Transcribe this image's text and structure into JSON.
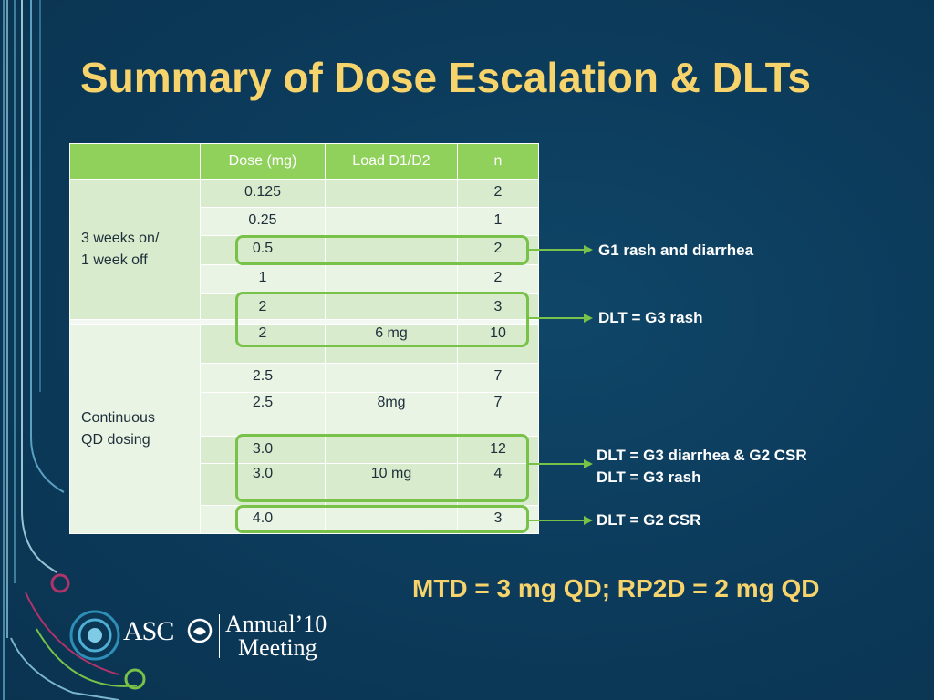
{
  "slide": {
    "title": "Summary of Dose Escalation & DLTs",
    "mtd_line": "MTD = 3 mg QD; RP2D = 2 mg QD",
    "logo": {
      "name": "ASCO",
      "sub1": "Annual’10",
      "sub2": "Meeting"
    }
  },
  "table": {
    "headers": [
      "",
      "Dose (mg)",
      "Load D1/D2",
      "n"
    ],
    "group1": {
      "label": "3 weeks on/\n1 week off",
      "rows": [
        {
          "dose": "0.125",
          "load": "",
          "n": "2"
        },
        {
          "dose": "0.25",
          "load": "",
          "n": "1"
        },
        {
          "dose": "0.5",
          "load": "",
          "n": "2"
        },
        {
          "dose": "1",
          "load": "",
          "n": "2"
        },
        {
          "dose": "2",
          "load": "",
          "n": "3"
        }
      ]
    },
    "group2": {
      "label": "Continuous\nQD dosing",
      "rows": [
        {
          "dose": "2",
          "load": "6 mg",
          "n": "10"
        },
        {
          "dose": "2.5",
          "load": "",
          "n": "7"
        },
        {
          "dose": "2.5",
          "load": "8mg",
          "n": "7"
        },
        {
          "dose": "3.0",
          "load": "",
          "n": "12"
        },
        {
          "dose": "3.0",
          "load": "10 mg",
          "n": "4"
        },
        {
          "dose": "4.0",
          "load": "",
          "n": "3"
        }
      ]
    }
  },
  "annotations": {
    "a1": "G1 rash and diarrhea",
    "a2": "DLT = G3 rash",
    "a3_line1": "DLT = G3 diarrhea & G2 CSR",
    "a3_line2": "DLT = G3 rash",
    "a4": "DLT = G2 CSR"
  },
  "colors": {
    "title": "#f6d36b",
    "header_green": "#8fd15a",
    "highlight_green": "#78c249",
    "background": "#0c3a5a"
  }
}
